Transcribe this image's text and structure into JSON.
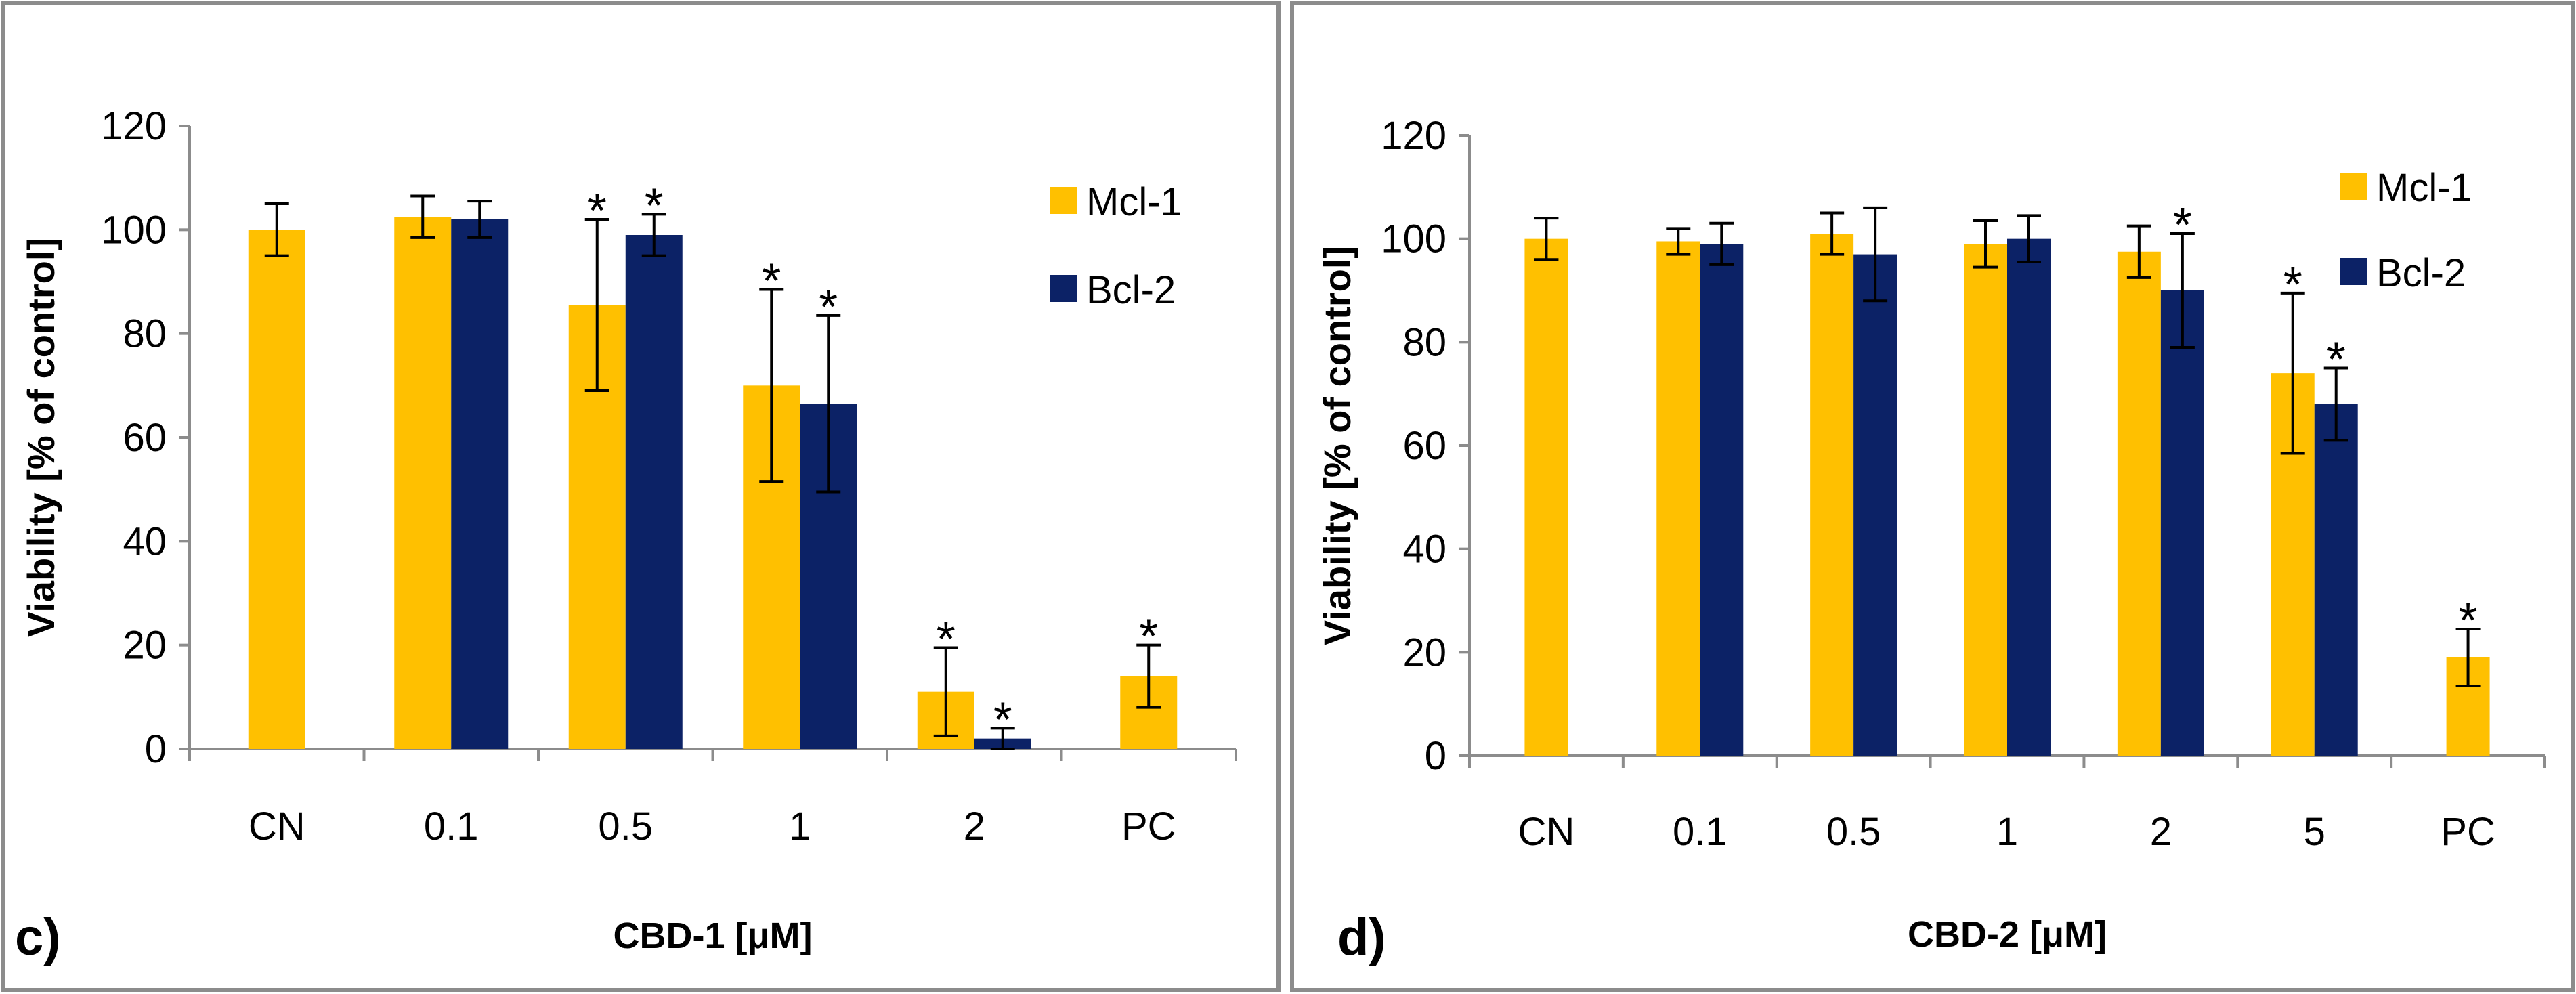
{
  "colors": {
    "mcl1": "#FFC000",
    "bcl2": "#0C2266",
    "frame": "#8C8C8C",
    "axis": "#8C8C8C"
  },
  "chart_data": [
    {
      "panel": "c)",
      "type": "bar",
      "xlabel": "CBD-1 [μM]",
      "ylabel": "Viability [% of control]",
      "ylim": [
        0,
        120
      ],
      "yticks": [
        0,
        20,
        40,
        60,
        80,
        100,
        120
      ],
      "categories": [
        "CN",
        "0.1",
        "0.5",
        "1",
        "2",
        "PC"
      ],
      "legend": [
        "Mcl-1",
        "Bcl-2"
      ],
      "series": [
        {
          "name": "Mcl-1",
          "values": [
            100,
            102.5,
            85.5,
            70,
            11,
            14
          ],
          "errors": [
            5,
            4,
            16.5,
            18.5,
            8.5,
            6
          ],
          "significant": [
            false,
            false,
            true,
            true,
            true,
            true
          ]
        },
        {
          "name": "Bcl-2",
          "values": [
            null,
            102,
            99,
            66.5,
            2,
            null
          ],
          "errors": [
            null,
            3.5,
            4,
            17,
            2,
            null
          ],
          "significant": [
            false,
            false,
            true,
            true,
            true,
            false
          ]
        }
      ]
    },
    {
      "panel": "d)",
      "type": "bar",
      "xlabel": "CBD-2 [μM]",
      "ylabel": "Viability [% of control]",
      "ylim": [
        0,
        120
      ],
      "yticks": [
        0,
        20,
        40,
        60,
        80,
        100,
        120
      ],
      "categories": [
        "CN",
        "0.1",
        "0.5",
        "1",
        "2",
        "5",
        "PC"
      ],
      "legend": [
        "Mcl-1",
        "Bcl-2"
      ],
      "series": [
        {
          "name": "Mcl-1",
          "values": [
            100,
            99.5,
            101,
            99,
            97.5,
            74,
            19
          ],
          "errors": [
            4,
            2.5,
            4,
            4.5,
            5,
            15.5,
            5.5
          ],
          "significant": [
            false,
            false,
            false,
            false,
            false,
            true,
            true
          ]
        },
        {
          "name": "Bcl-2",
          "values": [
            null,
            99,
            97,
            100,
            90,
            68,
            null
          ],
          "errors": [
            null,
            4,
            9,
            4.5,
            11,
            7,
            null
          ],
          "significant": [
            false,
            false,
            false,
            false,
            true,
            true,
            false
          ]
        }
      ]
    }
  ]
}
